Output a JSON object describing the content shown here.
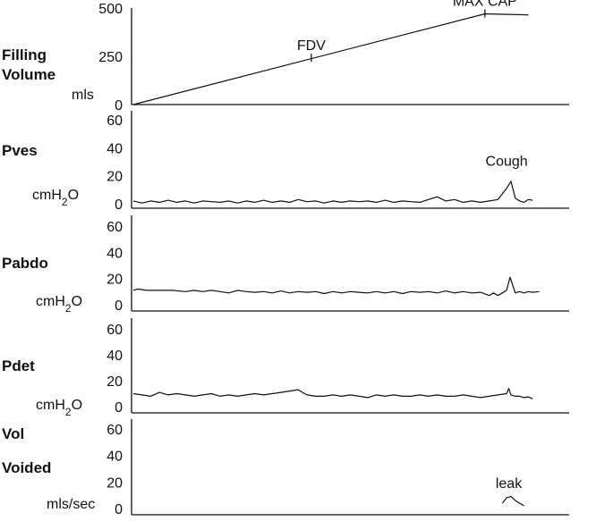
{
  "chart_data": [
    {
      "type": "line",
      "title": "Filling Volume",
      "title_lines": [
        "Filling",
        "Volume"
      ],
      "unit": "mls",
      "ylim": [
        0,
        500
      ],
      "yticks": [
        0,
        250,
        500
      ],
      "xlim": [
        0,
        100
      ],
      "series": [
        {
          "name": "Filling Volume",
          "points": [
            [
              0,
              0
            ],
            [
              81,
              470
            ],
            [
              91,
              465
            ]
          ]
        }
      ],
      "annotations": [
        {
          "text": "FDV",
          "x": 41,
          "y": 240,
          "marker": true
        },
        {
          "text": "MAX CAP",
          "x": 81,
          "y": 470,
          "marker": true
        }
      ]
    },
    {
      "type": "line",
      "title": "Pves",
      "title_lines": [
        "Pves"
      ],
      "unit": "cmH2O",
      "unit_main": "cmH",
      "unit_sub": "2",
      "unit_tail": "O",
      "ylim": [
        0,
        60
      ],
      "yticks": [
        0,
        20,
        40,
        60
      ],
      "xlim": [
        0,
        100
      ],
      "series": [
        {
          "name": "Pves",
          "points": [
            [
              0,
              2
            ],
            [
              2,
              0.5
            ],
            [
              4,
              2
            ],
            [
              6,
              1
            ],
            [
              8,
              2.5
            ],
            [
              10,
              1
            ],
            [
              12,
              2
            ],
            [
              14,
              0.5
            ],
            [
              16,
              2
            ],
            [
              18,
              1.5
            ],
            [
              20,
              1
            ],
            [
              22,
              2
            ],
            [
              24,
              0.5
            ],
            [
              26,
              2
            ],
            [
              28,
              1
            ],
            [
              30,
              2.5
            ],
            [
              32,
              1
            ],
            [
              34,
              2
            ],
            [
              36,
              1
            ],
            [
              38,
              3
            ],
            [
              40,
              1.5
            ],
            [
              42,
              2
            ],
            [
              44,
              0.5
            ],
            [
              46,
              2
            ],
            [
              48,
              1
            ],
            [
              50,
              2
            ],
            [
              52,
              1.5
            ],
            [
              54,
              2
            ],
            [
              56,
              1
            ],
            [
              58,
              2.5
            ],
            [
              60,
              1
            ],
            [
              62,
              2
            ],
            [
              64,
              1.5
            ],
            [
              66,
              1
            ],
            [
              68,
              3
            ],
            [
              70,
              5
            ],
            [
              72,
              2
            ],
            [
              74,
              3
            ],
            [
              76,
              1
            ],
            [
              78,
              2
            ],
            [
              80,
              1
            ],
            [
              82,
              2
            ],
            [
              84,
              3
            ],
            [
              86,
              11
            ],
            [
              87,
              16
            ],
            [
              88,
              4
            ],
            [
              89,
              2
            ],
            [
              90,
              1
            ],
            [
              91,
              3
            ],
            [
              92,
              2.5
            ]
          ]
        }
      ],
      "annotations": [
        {
          "text": "Cough",
          "x": 86,
          "y": 26,
          "marker": false
        }
      ]
    },
    {
      "type": "line",
      "title": "Pabdo",
      "title_lines": [
        "Pabdo"
      ],
      "unit": "cmH2O",
      "unit_main": "cmH",
      "unit_sub": "2",
      "unit_tail": "O",
      "ylim": [
        0,
        60
      ],
      "yticks": [
        0,
        20,
        40,
        60
      ],
      "xlim": [
        0,
        100
      ],
      "series": [
        {
          "name": "Pabdo",
          "points": [
            [
              0,
              11
            ],
            [
              1,
              12
            ],
            [
              3,
              11
            ],
            [
              6,
              11
            ],
            [
              9,
              11
            ],
            [
              12,
              10
            ],
            [
              14,
              11
            ],
            [
              16,
              10
            ],
            [
              18,
              11
            ],
            [
              20,
              10
            ],
            [
              22,
              9
            ],
            [
              24,
              11
            ],
            [
              26,
              10
            ],
            [
              28,
              9.5
            ],
            [
              30,
              10
            ],
            [
              32,
              9
            ],
            [
              34,
              10.5
            ],
            [
              36,
              9
            ],
            [
              38,
              10
            ],
            [
              40,
              9.5
            ],
            [
              42,
              10
            ],
            [
              44,
              8.5
            ],
            [
              46,
              10
            ],
            [
              48,
              9
            ],
            [
              50,
              10
            ],
            [
              52,
              9.5
            ],
            [
              54,
              9
            ],
            [
              56,
              10
            ],
            [
              58,
              9
            ],
            [
              60,
              10
            ],
            [
              62,
              8.5
            ],
            [
              64,
              10
            ],
            [
              66,
              9.5
            ],
            [
              68,
              10
            ],
            [
              70,
              9
            ],
            [
              72,
              10.5
            ],
            [
              74,
              9
            ],
            [
              76,
              10
            ],
            [
              78,
              9
            ],
            [
              80,
              9.5
            ],
            [
              82,
              7
            ],
            [
              83,
              9
            ],
            [
              84,
              7
            ],
            [
              85,
              9
            ],
            [
              86,
              11
            ],
            [
              86.8,
              21
            ],
            [
              87.5,
              14
            ],
            [
              88,
              9
            ],
            [
              89,
              10
            ],
            [
              90,
              9
            ],
            [
              91,
              10
            ],
            [
              92,
              9.5
            ],
            [
              93.5,
              10
            ]
          ]
        }
      ],
      "annotations": []
    },
    {
      "type": "line",
      "title": "Pdet",
      "title_lines": [
        "Pdet"
      ],
      "unit": "cmH2O",
      "unit_main": "cmH",
      "unit_sub": "2",
      "unit_tail": "O",
      "ylim": [
        0,
        60
      ],
      "yticks": [
        0,
        20,
        40,
        60
      ],
      "xlim": [
        0,
        100
      ],
      "series": [
        {
          "name": "Pdet",
          "points": [
            [
              0,
              10
            ],
            [
              2,
              9
            ],
            [
              4,
              8
            ],
            [
              6,
              11
            ],
            [
              8,
              9
            ],
            [
              10,
              10
            ],
            [
              12,
              9
            ],
            [
              14,
              8
            ],
            [
              16,
              9
            ],
            [
              18,
              10
            ],
            [
              20,
              8
            ],
            [
              22,
              9
            ],
            [
              24,
              8
            ],
            [
              26,
              9
            ],
            [
              28,
              10
            ],
            [
              30,
              9
            ],
            [
              32,
              10
            ],
            [
              34,
              11
            ],
            [
              36,
              12
            ],
            [
              38,
              13
            ],
            [
              39,
              11
            ],
            [
              40,
              9
            ],
            [
              42,
              8
            ],
            [
              44,
              8
            ],
            [
              46,
              9
            ],
            [
              48,
              8
            ],
            [
              50,
              9
            ],
            [
              52,
              8
            ],
            [
              54,
              7
            ],
            [
              56,
              9
            ],
            [
              58,
              8
            ],
            [
              60,
              9
            ],
            [
              62,
              8
            ],
            [
              64,
              8
            ],
            [
              66,
              9
            ],
            [
              68,
              8
            ],
            [
              70,
              9
            ],
            [
              72,
              8
            ],
            [
              74,
              8
            ],
            [
              76,
              9
            ],
            [
              78,
              8
            ],
            [
              80,
              7
            ],
            [
              82,
              8
            ],
            [
              84,
              9
            ],
            [
              86,
              10
            ],
            [
              86.5,
              14
            ],
            [
              87,
              9
            ],
            [
              88,
              8
            ],
            [
              89,
              8
            ],
            [
              90,
              7
            ],
            [
              91,
              7.5
            ],
            [
              92,
              6
            ]
          ]
        }
      ],
      "annotations": []
    },
    {
      "type": "line",
      "title": "Vol Voided",
      "title_lines": [
        "Vol",
        "Voided"
      ],
      "unit": "mls/sec",
      "ylim": [
        0,
        60
      ],
      "yticks": [
        0,
        20,
        40,
        60
      ],
      "xlim": [
        0,
        100
      ],
      "series": [
        {
          "name": "Vol Voided",
          "points": [
            [
              85,
              4
            ],
            [
              86,
              8
            ],
            [
              87,
              9
            ],
            [
              88,
              6
            ],
            [
              89,
              4
            ],
            [
              90,
              2
            ]
          ]
        }
      ],
      "annotations": [
        {
          "text": "leak",
          "x": 86.5,
          "y": 14,
          "marker": false
        }
      ]
    }
  ]
}
